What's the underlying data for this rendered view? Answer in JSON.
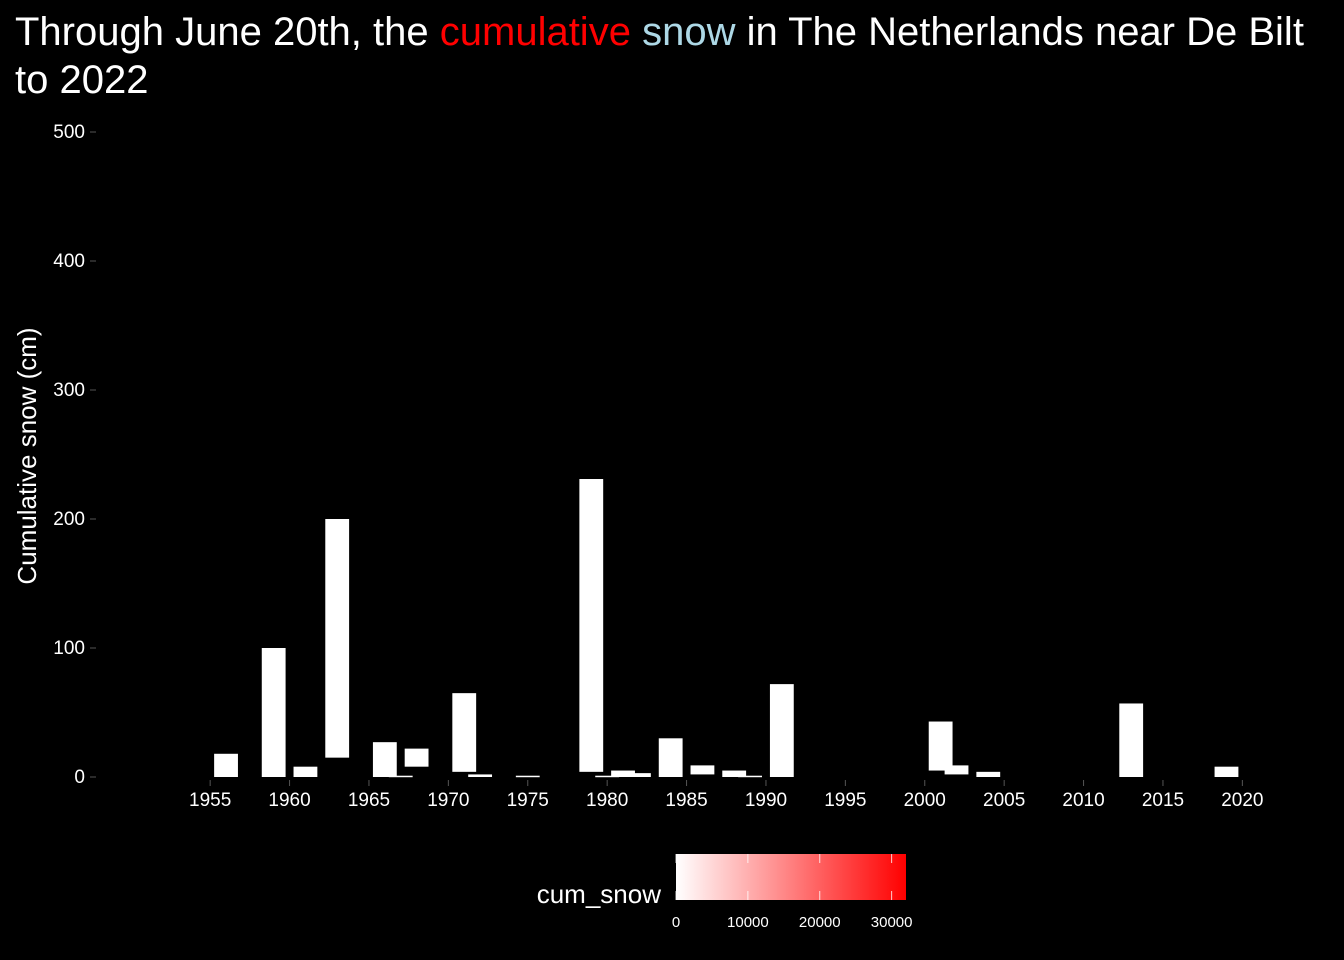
{
  "title": {
    "part1": "Through June 20th, the ",
    "word_red": "cumulative",
    "part2": " ",
    "word_blue": "snow",
    "part3": " in The Netherlands near De Bilt to 2022"
  },
  "colors": {
    "background": "#000000",
    "bar_fill": "#ffffff",
    "title_red": "#ff0000",
    "title_blue": "#add8e6",
    "legend_low": "#ffffff",
    "legend_high": "#ff0000"
  },
  "chart_data": {
    "type": "bar",
    "ylabel": "Cumulative snow (cm)",
    "xlabel": "",
    "ylim": [
      0,
      500
    ],
    "yticks": [
      0,
      100,
      200,
      300,
      400,
      500
    ],
    "xlim": [
      1948,
      2023
    ],
    "xticks": [
      1955,
      1960,
      1965,
      1970,
      1975,
      1980,
      1985,
      1990,
      1995,
      2000,
      2005,
      2010,
      2015,
      2020
    ],
    "grid": false,
    "bar_width_years": 1.5,
    "bars": [
      {
        "x": 1956,
        "ymin": 0,
        "ymax": 18
      },
      {
        "x": 1959,
        "ymin": 0,
        "ymax": 100
      },
      {
        "x": 1961,
        "ymin": 0,
        "ymax": 8
      },
      {
        "x": 1963,
        "ymin": 15,
        "ymax": 200
      },
      {
        "x": 1966,
        "ymin": 0,
        "ymax": 27
      },
      {
        "x": 1967,
        "ymin": 0,
        "ymax": 1
      },
      {
        "x": 1968,
        "ymin": 8,
        "ymax": 22
      },
      {
        "x": 1971,
        "ymin": 4,
        "ymax": 65
      },
      {
        "x": 1972,
        "ymin": 0,
        "ymax": 2
      },
      {
        "x": 1975,
        "ymin": 0,
        "ymax": 1
      },
      {
        "x": 1979,
        "ymin": 4,
        "ymax": 231
      },
      {
        "x": 1980,
        "ymin": 0,
        "ymax": 1
      },
      {
        "x": 1981,
        "ymin": 0,
        "ymax": 5
      },
      {
        "x": 1982,
        "ymin": 0,
        "ymax": 3
      },
      {
        "x": 1984,
        "ymin": 0,
        "ymax": 30
      },
      {
        "x": 1986,
        "ymin": 2,
        "ymax": 9
      },
      {
        "x": 1988,
        "ymin": 0,
        "ymax": 5
      },
      {
        "x": 1989,
        "ymin": 0,
        "ymax": 1
      },
      {
        "x": 1991,
        "ymin": 0,
        "ymax": 72
      },
      {
        "x": 2001,
        "ymin": 5,
        "ymax": 43
      },
      {
        "x": 2002,
        "ymin": 2,
        "ymax": 9
      },
      {
        "x": 2004,
        "ymin": 0,
        "ymax": 4
      },
      {
        "x": 2013,
        "ymin": 0,
        "ymax": 57
      },
      {
        "x": 2019,
        "ymin": 0,
        "ymax": 8
      }
    ],
    "legend": {
      "title": "cum_snow",
      "placement": "bottom",
      "range": [
        0,
        32000
      ],
      "breaks": [
        0,
        10000,
        20000,
        30000
      ],
      "break_labels": [
        "0",
        "10000",
        "20000",
        "30000"
      ]
    }
  }
}
